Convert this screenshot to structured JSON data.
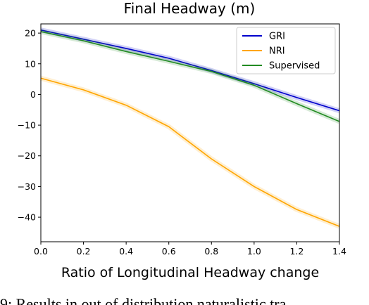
{
  "chart_data": {
    "type": "line",
    "title": "Final Headway (m)",
    "xlabel": "Ratio of Longitudinal Headway change",
    "ylabel": "",
    "xlim": [
      0.0,
      1.4
    ],
    "ylim": [
      -48,
      23
    ],
    "xticks": [
      "0.0",
      "0.2",
      "0.4",
      "0.6",
      "0.8",
      "1.0",
      "1.2",
      "1.4"
    ],
    "yticks": [
      "20",
      "10",
      "0",
      "−10",
      "−20",
      "−30",
      "−40"
    ],
    "grid": false,
    "legend_position": "top-right",
    "x": [
      0.0,
      0.2,
      0.4,
      0.6,
      0.8,
      1.0,
      1.2,
      1.4
    ],
    "series": [
      {
        "name": "GRI",
        "color": "#0000cc",
        "values": [
          21.0,
          18.0,
          15.0,
          11.8,
          7.8,
          3.5,
          -1.0,
          -5.3
        ]
      },
      {
        "name": "NRI",
        "color": "#ffa500",
        "values": [
          5.3,
          1.5,
          -3.5,
          -10.5,
          -21.0,
          -30.0,
          -37.5,
          -43.0
        ]
      },
      {
        "name": "Supervised",
        "color": "#228b22",
        "values": [
          20.5,
          17.5,
          14.0,
          10.8,
          7.5,
          3.0,
          -3.0,
          -8.8
        ]
      }
    ]
  },
  "caption_fragment": "9: Results in out of distribution naturalistic tra"
}
